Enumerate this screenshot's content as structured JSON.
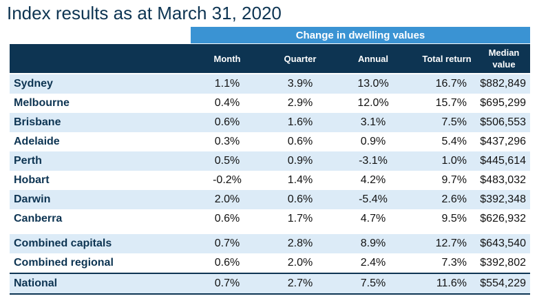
{
  "title": "Index results as at March 31, 2020",
  "banner": "Change in dwelling values",
  "columns": {
    "month": "Month",
    "quarter": "Quarter",
    "annual": "Annual",
    "total_return": "Total return",
    "median_line1": "Median",
    "median_line2": "value"
  },
  "rows": [
    {
      "name": "Sydney",
      "month": "1.1%",
      "quarter": "3.9%",
      "annual": "13.0%",
      "total": "16.7%",
      "median": "$882,849"
    },
    {
      "name": "Melbourne",
      "month": "0.4%",
      "quarter": "2.9%",
      "annual": "12.0%",
      "total": "15.7%",
      "median": "$695,299"
    },
    {
      "name": "Brisbane",
      "month": "0.6%",
      "quarter": "1.6%",
      "annual": "3.1%",
      "total": "7.5%",
      "median": "$506,553"
    },
    {
      "name": "Adelaide",
      "month": "0.3%",
      "quarter": "0.6%",
      "annual": "0.9%",
      "total": "5.4%",
      "median": "$437,296"
    },
    {
      "name": "Perth",
      "month": "0.5%",
      "quarter": "0.9%",
      "annual": "-3.1%",
      "total": "1.0%",
      "median": "$445,614"
    },
    {
      "name": "Hobart",
      "month": "-0.2%",
      "quarter": "1.4%",
      "annual": "4.2%",
      "total": "9.7%",
      "median": "$483,032"
    },
    {
      "name": "Darwin",
      "month": "2.0%",
      "quarter": "0.6%",
      "annual": "-5.4%",
      "total": "2.6%",
      "median": "$392,348"
    },
    {
      "name": "Canberra",
      "month": "0.6%",
      "quarter": "1.7%",
      "annual": "4.7%",
      "total": "9.5%",
      "median": "$626,932"
    },
    {
      "name": "Combined capitals",
      "month": "0.7%",
      "quarter": "2.8%",
      "annual": "8.9%",
      "total": "12.7%",
      "median": "$643,540"
    },
    {
      "name": "Combined regional",
      "month": "0.6%",
      "quarter": "2.0%",
      "annual": "2.4%",
      "total": "7.3%",
      "median": "$392,802"
    },
    {
      "name": "National",
      "month": "0.7%",
      "quarter": "2.7%",
      "annual": "7.5%",
      "total": "11.6%",
      "median": "$554,229"
    }
  ],
  "colors": {
    "header_bg": "#0d3452",
    "banner_bg": "#3a93d3",
    "row_shade": "#dcebf7"
  }
}
